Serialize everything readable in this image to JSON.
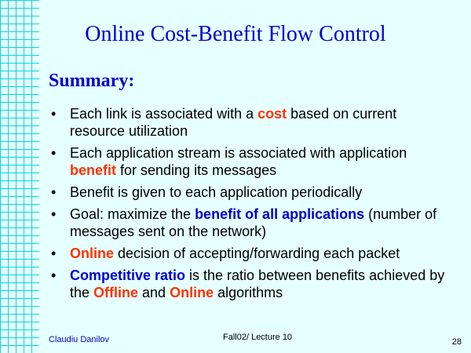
{
  "slide": {
    "title": "Online Cost-Benefit Flow Control",
    "subtitle": "Summary:",
    "bullets": [
      {
        "pre": "Each link is associated with a ",
        "hl": "cost",
        "post": " based on current resource utilization"
      },
      {
        "pre": "Each application stream is associated with application ",
        "hl": "benefit",
        "post": " for sending its messages"
      },
      {
        "pre": "Benefit is given to each application periodically"
      },
      {
        "pre": "Goal: maximize the ",
        "hl": "benefit of all applications",
        "post": " (number of messages sent on the network)"
      },
      {
        "hl": "Online",
        "post": " decision of accepting/forwarding each packet"
      },
      {
        "hl": "Competitive ratio",
        "mid": " is the ratio between benefits achieved by the ",
        "hl2": "Offline",
        "mid2": " and ",
        "hl3": "Online",
        "post": " algorithms"
      }
    ]
  },
  "footer": {
    "author": "Claudiu Danilov",
    "course": "Fall02/ Lecture 10",
    "page": "28"
  },
  "colors": {
    "background": "#e6ffff",
    "grid": "#00d8e8",
    "title": "#0000cc",
    "highlight_red": "#ff3300",
    "highlight_blue": "#0000cc"
  }
}
